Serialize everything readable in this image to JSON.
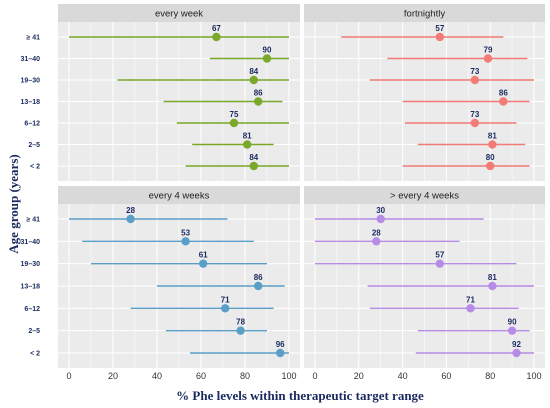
{
  "chart_data": {
    "type": "dot-interval",
    "ylabel": "Age group (years)",
    "xlabel": "% Phe levels within therapeutic target range",
    "xlim": [
      0,
      100
    ],
    "xticks": [
      "0",
      "20",
      "40",
      "60",
      "80",
      "100"
    ],
    "categories": [
      "≥ 41",
      "31–40",
      "19–30",
      "13–18",
      "6–12",
      "2–5",
      "< 2"
    ],
    "panels": [
      {
        "name": "every week",
        "color": "#7aa82a",
        "values": [
          67,
          90,
          84,
          86,
          75,
          81,
          84
        ],
        "low": [
          0,
          64,
          22,
          43,
          49,
          56,
          53
        ],
        "high": [
          100,
          100,
          100,
          97,
          100,
          93,
          100
        ]
      },
      {
        "name": "fortnightly",
        "color": "#f27b76",
        "values": [
          57,
          79,
          73,
          86,
          73,
          81,
          80
        ],
        "low": [
          12,
          33,
          25,
          40,
          41,
          47,
          40
        ],
        "high": [
          86,
          97,
          100,
          98,
          92,
          96,
          98
        ]
      },
      {
        "name": "every 4 weeks",
        "color": "#5a9fc8",
        "values": [
          28,
          53,
          61,
          86,
          71,
          78,
          96
        ],
        "low": [
          0,
          6,
          10,
          40,
          28,
          44,
          55
        ],
        "high": [
          72,
          84,
          90,
          98,
          93,
          90,
          100
        ]
      },
      {
        "name": "> every 4 weeks",
        "color": "#b78ce6",
        "values": [
          30,
          28,
          57,
          81,
          71,
          90,
          92
        ],
        "low": [
          0,
          0,
          0,
          24,
          25,
          47,
          46
        ],
        "high": [
          77,
          66,
          92,
          100,
          93,
          98,
          100
        ]
      }
    ]
  }
}
